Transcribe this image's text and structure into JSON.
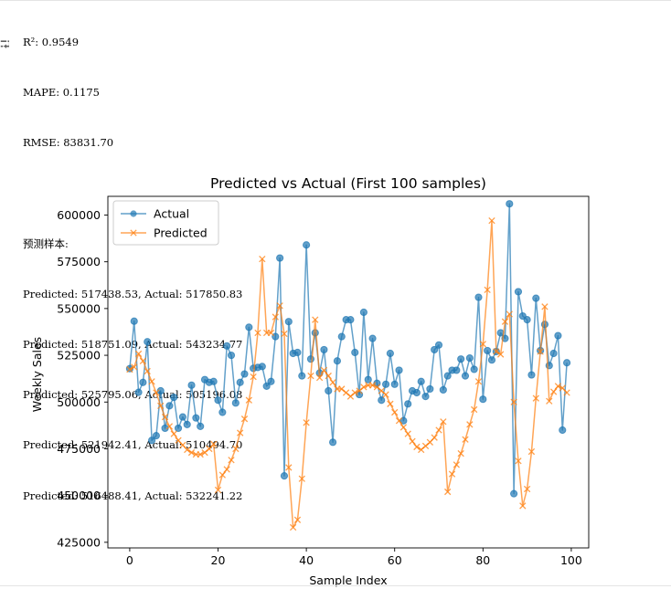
{
  "console": {
    "metrics": [
      "R²: 0.9549",
      "MAPE: 0.1175",
      "RMSE: 83831.70"
    ],
    "sample_header": "预测样本:",
    "samples": [
      "Predicted: 517438.53, Actual: 517850.83",
      "Predicted: 518751.09, Actual: 543234.77",
      "Predicted: 525795.06, Actual: 505196.08",
      "Predicted: 521942.41, Actual: 510494.70",
      "Predicted: 516488.41, Actual: 532241.22"
    ]
  },
  "icons": {
    "cell_output": "output-toggle-icon"
  },
  "chart_data": {
    "type": "line",
    "title": "Predicted vs Actual (First 100 samples)",
    "xlabel": "Sample Index",
    "ylabel": "Weekly Sales",
    "xlim": [
      -4.95,
      103.95
    ],
    "ylim": [
      422000,
      610000
    ],
    "xticks": [
      0,
      20,
      40,
      60,
      80,
      100
    ],
    "yticks": [
      425000,
      450000,
      475000,
      500000,
      525000,
      550000,
      575000,
      600000
    ],
    "grid": false,
    "legend": "top-left",
    "series": [
      {
        "name": "Actual",
        "color": "#1f77b4",
        "marker": "circle",
        "values": [
          517851,
          543235,
          505196,
          510495,
          532241,
          479500,
          482000,
          506000,
          486000,
          498000,
          502500,
          486000,
          492000,
          488000,
          509000,
          491500,
          487000,
          512000,
          510500,
          511000,
          501000,
          494500,
          530000,
          525000,
          499500,
          510500,
          515000,
          540000,
          518000,
          518500,
          519000,
          508500,
          511000,
          535000,
          577000,
          460500,
          543000,
          526000,
          526500,
          514000,
          584000,
          523000,
          537000,
          515500,
          528000,
          506000,
          478500,
          522000,
          535000,
          544000,
          544000,
          526500,
          504000,
          548000,
          512000,
          534000,
          510000,
          501000,
          509500,
          526000,
          509500,
          517000,
          490000,
          499000,
          506000,
          505000,
          511000,
          503000,
          507000,
          528000,
          530500,
          506500,
          514000,
          517000,
          517000,
          523000,
          514000,
          523500,
          517500,
          556000,
          501500,
          527500,
          522500,
          527000,
          537000,
          534000,
          606000,
          451000,
          559000,
          546000,
          544000,
          514500,
          555500,
          527500,
          541500,
          519500,
          526000,
          535500,
          485000,
          521000
        ]
      },
      {
        "name": "Predicted",
        "color": "#ff7f0e",
        "marker": "x",
        "values": [
          517439,
          518751,
          525795,
          521942,
          516488,
          511000,
          505000,
          498000,
          492000,
          487000,
          483000,
          479500,
          477000,
          474500,
          473000,
          472000,
          472000,
          473000,
          475000,
          477500,
          453000,
          461000,
          464000,
          469000,
          475000,
          483500,
          491000,
          501000,
          513500,
          537000,
          576500,
          537000,
          537000,
          545500,
          551500,
          536500,
          465000,
          433000,
          437000,
          459000,
          489000,
          514000,
          544000,
          513000,
          517000,
          514000,
          510500,
          507000,
          507000,
          505000,
          503000,
          505000,
          506000,
          508000,
          509000,
          509000,
          508000,
          506000,
          504000,
          499000,
          494500,
          490000,
          486500,
          483000,
          479000,
          476000,
          474500,
          476500,
          478500,
          481000,
          485000,
          489500,
          452000,
          461500,
          466500,
          472500,
          480000,
          488000,
          496000,
          511000,
          531000,
          560000,
          597000,
          527000,
          525500,
          543000,
          547000,
          500000,
          468500,
          444500,
          453500,
          473500,
          502000,
          527000,
          551000,
          500500,
          505500,
          508500,
          507500,
          505000
        ]
      }
    ]
  }
}
